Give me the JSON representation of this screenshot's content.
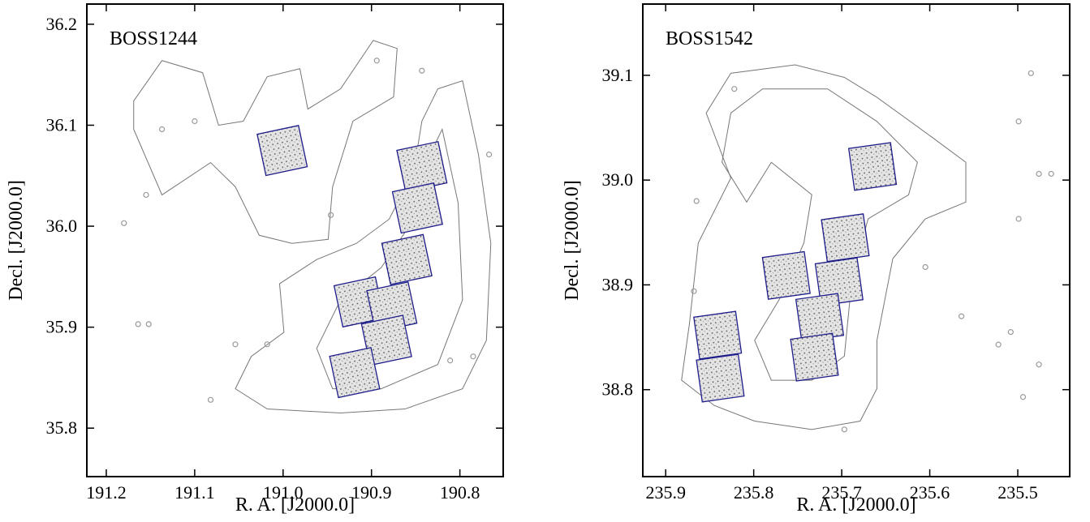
{
  "chart_data": [
    {
      "type": "scatter",
      "annotation": "BOSS1244",
      "xlabel": "R. A. [J2000.0]",
      "ylabel": "Decl. [J2000.0]",
      "xlim": [
        191.222,
        190.751
      ],
      "ylim": [
        35.752,
        36.22
      ],
      "xticks": [
        191.2,
        191.1,
        {
          "value": 191,
          "label": "191.0"
        },
        190.9,
        190.8
      ],
      "yticks": [
        35.8,
        35.9,
        {
          "value": 36,
          "label": "36.0"
        },
        36.1,
        36.2
      ],
      "contours": [
        {
          "x": [
            191.169,
            191.137,
            191.091,
            191.073,
            191.045,
            191.018,
            190.981,
            190.972,
            190.935,
            190.898,
            190.871,
            190.875,
            190.921,
            190.944,
            190.949,
            190.99,
            191.027,
            191.054,
            191.082,
            191.137,
            191.169
          ],
          "y": [
            36.124,
            36.164,
            36.152,
            36.1,
            36.104,
            36.148,
            36.156,
            36.116,
            36.136,
            36.184,
            36.176,
            36.128,
            36.104,
            36.039,
            35.987,
            35.983,
            35.991,
            36.039,
            36.063,
            36.031,
            36.096
          ]
        },
        {
          "x": [
            190.825,
            190.797,
            190.779,
            190.765,
            190.77,
            190.797,
            190.862,
            190.935,
            191.018,
            191.054,
            191.036,
            190.999,
            191.004,
            190.962,
            190.917,
            190.88,
            190.852,
            190.843
          ],
          "y": [
            36.136,
            36.144,
            36.071,
            35.983,
            35.887,
            35.839,
            35.819,
            35.815,
            35.819,
            35.839,
            35.871,
            35.895,
            35.943,
            35.967,
            35.983,
            36.007,
            36.055,
            36.104
          ]
        },
        {
          "x": [
            190.82,
            190.802,
            190.797,
            190.825,
            190.889,
            190.944,
            190.962,
            190.935,
            190.889,
            190.852,
            190.834
          ],
          "y": [
            36.096,
            36.023,
            35.927,
            35.863,
            35.839,
            35.839,
            35.879,
            35.927,
            35.959,
            36.007,
            36.071
          ]
        }
      ],
      "series": [
        {
          "color": "#9a9a9a",
          "x": [
            191.18,
            191.164,
            191.152,
            191.054,
            191.082,
            190.946,
            190.843,
            190.811,
            190.785,
            190.894,
            191.018,
            190.767,
            191.137,
            191.1,
            191.155
          ],
          "y": [
            36.003,
            35.903,
            35.903,
            35.883,
            35.828,
            36.011,
            36.154,
            35.867,
            35.871,
            36.164,
            35.883,
            36.071,
            36.096,
            36.104,
            36.031
          ]
        }
      ],
      "fields": {
        "color": "#1c1c8a",
        "x": [
          191.001,
          190.843,
          190.848,
          190.86,
          190.914,
          190.877,
          190.883,
          190.919
        ],
        "y": [
          36.075,
          36.059,
          36.018,
          35.967,
          35.925,
          35.92,
          35.887,
          35.855
        ]
      }
    },
    {
      "type": "scatter",
      "annotation": "BOSS1542",
      "xlabel": "R. A. [J2000.0]",
      "ylabel": "Decl. [J2000.0]",
      "xlim": [
        235.926,
        235.441
      ],
      "ylim": [
        38.717,
        39.168
      ],
      "xticks": [
        235.9,
        235.8,
        235.7,
        235.6,
        235.5
      ],
      "yticks": [
        38.8,
        38.9,
        {
          "value": 39,
          "label": "39.0"
        },
        39.1
      ],
      "contours": [
        {
          "x": [
            235.873,
            235.863,
            235.826,
            235.854,
            235.826,
            235.753,
            235.697,
            235.66,
            235.596,
            235.559,
            235.559,
            235.605,
            235.642,
            235.66,
            235.66,
            235.679,
            235.734,
            235.799,
            235.845,
            235.882
          ],
          "y": [
            38.863,
            38.94,
            39.002,
            39.064,
            39.102,
            39.11,
            39.098,
            39.079,
            39.04,
            39.017,
            38.979,
            38.963,
            38.925,
            38.847,
            38.801,
            38.77,
            38.762,
            38.77,
            38.785,
            38.809
          ]
        },
        {
          "x": [
            235.836,
            235.826,
            235.79,
            235.716,
            235.66,
            235.614,
            235.624,
            235.67,
            235.688,
            235.697,
            235.734,
            235.78,
            235.799,
            235.771,
            235.743,
            235.734,
            235.78,
            235.808
          ],
          "y": [
            39.017,
            39.064,
            39.087,
            39.087,
            39.056,
            39.017,
            38.986,
            38.963,
            38.909,
            38.832,
            38.809,
            38.809,
            38.847,
            38.886,
            38.94,
            38.986,
            39.017,
            38.979
          ]
        }
      ],
      "series": [
        {
          "color": "#9a9a9a",
          "x": [
            235.865,
            235.868,
            235.499,
            235.499,
            235.476,
            235.508,
            235.522,
            235.485,
            235.462,
            235.605,
            235.494,
            235.822,
            235.697,
            235.564,
            235.476
          ],
          "y": [
            38.98,
            38.894,
            39.056,
            38.963,
            39.006,
            38.855,
            38.843,
            39.102,
            39.006,
            38.917,
            38.793,
            39.087,
            38.762,
            38.87,
            38.824
          ]
        }
      ],
      "fields": {
        "color": "#1c1c8a",
        "x": [
          235.665,
          235.696,
          235.763,
          235.703,
          235.725,
          235.731,
          235.841,
          235.838
        ],
        "y": [
          39.013,
          38.945,
          38.909,
          38.903,
          38.869,
          38.831,
          38.852,
          38.811
        ]
      }
    }
  ]
}
